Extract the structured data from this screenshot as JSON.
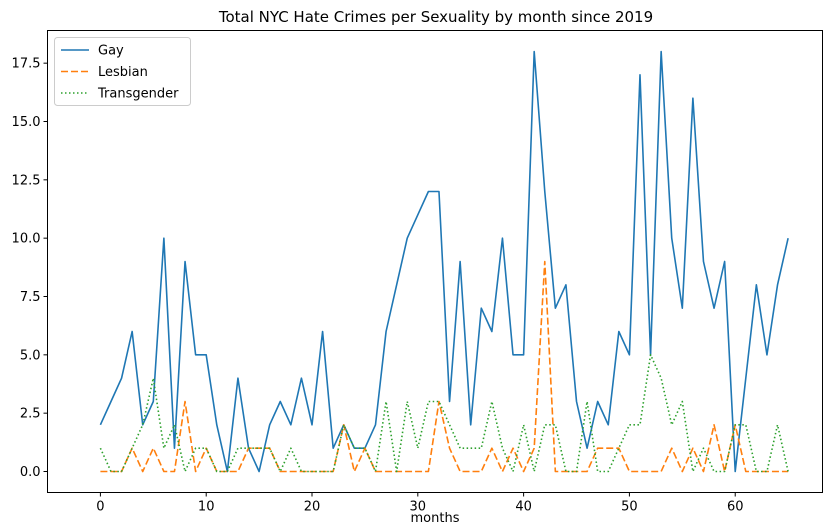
{
  "chart_data": {
    "type": "line",
    "title": "Total NYC Hate Crimes per Sexuality by month since 2019",
    "xlabel": "months",
    "ylabel": "",
    "xlim": [
      -5,
      68.25
    ],
    "ylim": [
      -0.9,
      18.9
    ],
    "xticks": [
      0,
      10,
      20,
      30,
      40,
      50,
      60
    ],
    "yticks": [
      0.0,
      2.5,
      5.0,
      7.5,
      10.0,
      12.5,
      15.0,
      17.5
    ],
    "ytick_labels": [
      "0.0",
      "2.5",
      "5.0",
      "7.5",
      "10.0",
      "12.5",
      "15.0",
      "17.5"
    ],
    "legend_position": "top-left",
    "x": [
      0,
      1,
      2,
      3,
      4,
      5,
      6,
      7,
      8,
      9,
      10,
      11,
      12,
      13,
      14,
      15,
      16,
      17,
      18,
      19,
      20,
      21,
      22,
      23,
      24,
      25,
      26,
      27,
      28,
      29,
      30,
      31,
      32,
      33,
      34,
      35,
      36,
      37,
      38,
      39,
      40,
      41,
      42,
      43,
      44,
      45,
      46,
      47,
      48,
      49,
      50,
      51,
      52,
      53,
      54,
      55,
      56,
      57,
      58,
      59,
      60,
      61,
      62,
      63,
      64,
      65
    ],
    "series": [
      {
        "name": "Gay",
        "color": "#1f77b4",
        "style": "solid",
        "values": [
          2,
          3,
          4,
          6,
          2,
          3,
          10,
          1,
          9,
          5,
          5,
          2,
          0,
          4,
          1,
          0,
          2,
          3,
          2,
          4,
          2,
          6,
          1,
          2,
          1,
          1,
          2,
          6,
          8,
          10,
          11,
          12,
          12,
          3,
          9,
          2,
          7,
          6,
          10,
          5,
          5,
          18,
          12,
          7,
          8,
          3,
          1,
          3,
          2,
          6,
          5,
          17,
          5,
          18,
          10,
          7,
          16,
          9,
          7,
          9,
          0,
          4,
          8,
          5,
          8,
          10
        ]
      },
      {
        "name": "Lesbian",
        "color": "#ff7f0e",
        "style": "dashed",
        "values": [
          0,
          0,
          0,
          1,
          0,
          1,
          0,
          0,
          3,
          0,
          1,
          0,
          0,
          0,
          1,
          1,
          1,
          0,
          0,
          0,
          0,
          0,
          0,
          2,
          0,
          1,
          0,
          0,
          0,
          0,
          0,
          0,
          3,
          1,
          0,
          0,
          0,
          1,
          0,
          1,
          0,
          1,
          9,
          0,
          0,
          0,
          0,
          1,
          1,
          1,
          0,
          0,
          0,
          0,
          1,
          0,
          1,
          0,
          2,
          0,
          2,
          0,
          0,
          0,
          0,
          0
        ]
      },
      {
        "name": "Transgender",
        "color": "#2ca02c",
        "style": "dotted",
        "values": [
          1,
          0,
          0,
          1,
          2,
          4,
          1,
          2,
          0,
          1,
          1,
          0,
          0,
          1,
          1,
          1,
          1,
          0,
          1,
          0,
          0,
          0,
          0,
          2,
          1,
          1,
          0,
          3,
          0,
          3,
          1,
          3,
          3,
          2,
          1,
          1,
          1,
          3,
          1,
          0,
          2,
          0,
          2,
          2,
          0,
          0,
          3,
          0,
          0,
          1,
          2,
          2,
          5,
          4,
          2,
          3,
          0,
          1,
          0,
          0,
          2,
          2,
          0,
          0,
          2,
          0
        ]
      }
    ]
  }
}
